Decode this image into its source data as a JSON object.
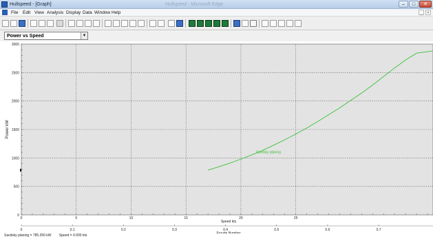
{
  "window": {
    "title": "Hullspeed - [Graph]",
    "faded_title": "Hullspeed - Microsoft Edge",
    "controls": {
      "minimize": "–",
      "maximize": "□",
      "close": "✕"
    }
  },
  "menu": {
    "items": [
      "File",
      "Edit",
      "View",
      "Analysis",
      "Display",
      "Data",
      "Window",
      "Help"
    ],
    "mdi_controls": {
      "minimize": "_",
      "close": "×"
    }
  },
  "toolbar": {
    "icons": [
      "new-icon",
      "open-icon",
      "save-icon",
      "cut-icon",
      "copy-icon",
      "paste-icon",
      "print-icon",
      "zoom-in-icon",
      "zoom-out-icon",
      "pan-icon",
      "home-icon",
      "table-icon",
      "chart-icon",
      "graph-icon",
      "forward-icon",
      "back-icon",
      "data-icon",
      "settings-icon",
      "gear-icon",
      "save-graph-icon",
      "grid-1-icon",
      "grid-2-icon",
      "grid-3-icon",
      "grid-4-icon",
      "grid-5-icon",
      "bar-icon",
      "axis-icon",
      "marker-icon",
      "filter-icon",
      "left-icon",
      "up-icon",
      "right-icon",
      "help-icon"
    ]
  },
  "graph_selector": {
    "value": "Power vs Speed",
    "arrow": "▼"
  },
  "chart_data": {
    "type": "line",
    "ylabel": "Power  kW",
    "xlabel": "Speed  kts",
    "x2label": "Froude Number",
    "xlim": [
      0,
      37.5
    ],
    "ylim": [
      0,
      3000
    ],
    "x_ticks": [
      0,
      5,
      10,
      15,
      20,
      25
    ],
    "y_ticks": [
      0,
      500,
      1000,
      1500,
      2000,
      2500,
      3000
    ],
    "froude_ticks": [
      "0",
      "0.1",
      "0.2",
      "0.3",
      "0.4",
      "0.5",
      "0.6",
      "0.7"
    ],
    "froude_tick_speeds": [
      0,
      4.65,
      9.3,
      13.95,
      18.6,
      23.25,
      27.9,
      32.55
    ],
    "grid": true,
    "series": [
      {
        "name": "Savitsky planing",
        "color": "#3cc13c",
        "x": [
          17,
          18,
          19,
          20,
          21,
          22,
          23,
          24,
          25,
          26,
          27,
          28,
          29,
          30,
          31,
          32,
          33,
          34,
          35,
          36,
          37.5
        ],
        "y": [
          785,
          845,
          910,
          980,
          1055,
          1135,
          1225,
          1320,
          1420,
          1525,
          1640,
          1760,
          1880,
          2010,
          2140,
          2280,
          2430,
          2580,
          2720,
          2840,
          2880
        ]
      }
    ],
    "series_label_at": {
      "x": 22.5,
      "y": 1080
    }
  },
  "status": {
    "planing": "Savitsky planing = 785.350 kW",
    "speed": "Speed = 0.000 kts"
  }
}
